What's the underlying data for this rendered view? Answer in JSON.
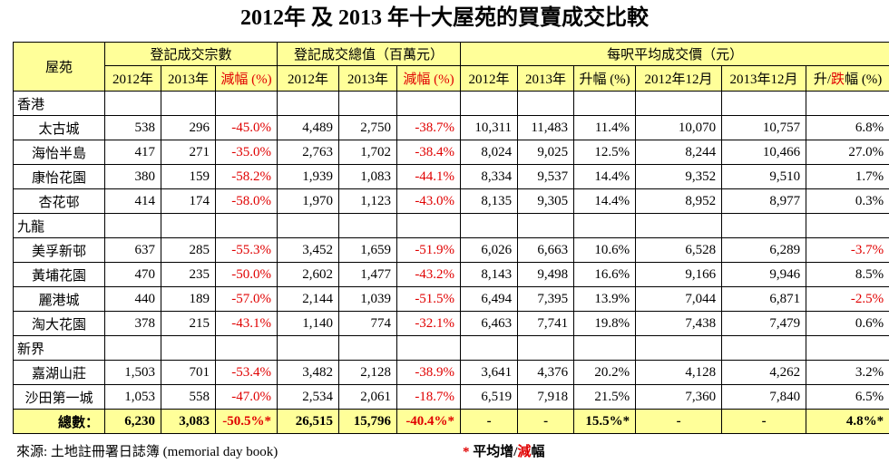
{
  "title": "2012年 及 2013 年十大屋苑的買賣成交比較",
  "header": {
    "group_row": [
      "屋苑",
      "登記成交宗數",
      "登記成交總值（百萬元）",
      "每呎平均成交價（元）"
    ],
    "sub_row": [
      "2012年",
      "2013年",
      "減幅 (%)",
      "2012年",
      "2013年",
      "減幅 (%)",
      "2012年",
      "2013年",
      "升幅 (%)",
      "2012年12月",
      "2013年12月",
      [
        "升/",
        "跌",
        "幅 (%)"
      ]
    ]
  },
  "sections": [
    {
      "name": "香港",
      "rows": [
        [
          "太古城",
          "538",
          "296",
          "-45.0%",
          "4,489",
          "2,750",
          "-38.7%",
          "10,311",
          "11,483",
          "11.4%",
          "10,070",
          "10,757",
          "6.8%"
        ],
        [
          "海怡半島",
          "417",
          "271",
          "-35.0%",
          "2,763",
          "1,702",
          "-38.4%",
          "8,024",
          "9,025",
          "12.5%",
          "8,244",
          "10,466",
          "27.0%"
        ],
        [
          "康怡花園",
          "380",
          "159",
          "-58.2%",
          "1,939",
          "1,083",
          "-44.1%",
          "8,334",
          "9,537",
          "14.4%",
          "9,352",
          "9,510",
          "1.7%"
        ],
        [
          "杏花邨",
          "414",
          "174",
          "-58.0%",
          "1,970",
          "1,123",
          "-43.0%",
          "8,135",
          "9,305",
          "14.4%",
          "8,952",
          "8,977",
          "0.3%"
        ]
      ]
    },
    {
      "name": "九龍",
      "rows": [
        [
          "美孚新邨",
          "637",
          "285",
          "-55.3%",
          "3,452",
          "1,659",
          "-51.9%",
          "6,026",
          "6,663",
          "10.6%",
          "6,528",
          "6,289",
          "-3.7%"
        ],
        [
          "黃埔花園",
          "470",
          "235",
          "-50.0%",
          "2,602",
          "1,477",
          "-43.2%",
          "8,143",
          "9,498",
          "16.6%",
          "9,166",
          "9,946",
          "8.5%"
        ],
        [
          "麗港城",
          "440",
          "189",
          "-57.0%",
          "2,144",
          "1,039",
          "-51.5%",
          "6,494",
          "7,395",
          "13.9%",
          "7,044",
          "6,871",
          "-2.5%"
        ],
        [
          "淘大花園",
          "378",
          "215",
          "-43.1%",
          "1,140",
          "774",
          "-32.1%",
          "6,463",
          "7,741",
          "19.8%",
          "7,438",
          "7,479",
          "0.6%"
        ]
      ]
    },
    {
      "name": "新界",
      "rows": [
        [
          "嘉湖山莊",
          "1,503",
          "701",
          "-53.4%",
          "3,482",
          "2,128",
          "-38.9%",
          "3,641",
          "4,376",
          "20.2%",
          "4,128",
          "4,262",
          "3.2%"
        ],
        [
          "沙田第一城",
          "1,053",
          "558",
          "-47.0%",
          "2,534",
          "2,061",
          "-18.7%",
          "6,519",
          "7,918",
          "21.5%",
          "7,360",
          "7,840",
          "6.5%"
        ]
      ]
    }
  ],
  "total": [
    "總數：",
    "6,230",
    "3,083",
    "-50.5%*",
    "26,515",
    "15,796",
    "-40.4%*",
    "-",
    "-",
    "15.5%*",
    "-",
    "-",
    "4.8%*"
  ],
  "footer": {
    "source": "來源: 土地註冊署日誌簿 (memorial day book)",
    "note_parts": [
      "*",
      " 平均增/",
      "減",
      "幅"
    ]
  }
}
